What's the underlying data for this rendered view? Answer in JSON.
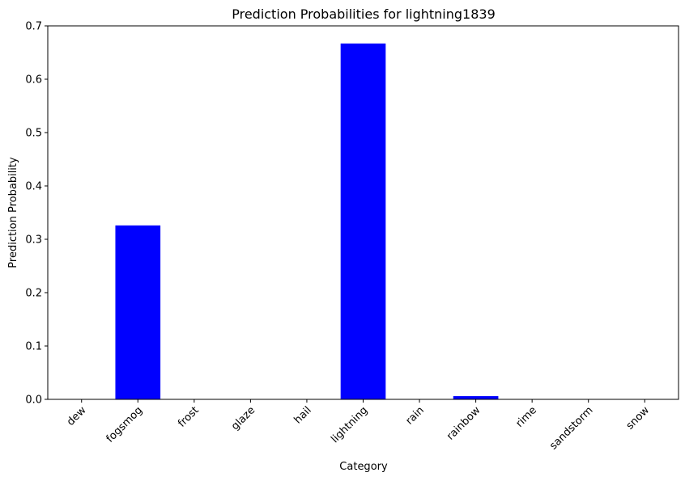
{
  "chart_data": {
    "type": "bar",
    "title": "Prediction Probabilities for lightning1839",
    "xlabel": "Category",
    "ylabel": "Prediction Probability",
    "categories": [
      "dew",
      "fogsmog",
      "frost",
      "glaze",
      "hail",
      "lightning",
      "rain",
      "rainbow",
      "rime",
      "sandstorm",
      "snow"
    ],
    "values": [
      0.0,
      0.326,
      0.0,
      0.0,
      0.0,
      0.667,
      0.0,
      0.006,
      0.0,
      0.0,
      0.0
    ],
    "ylim": [
      0,
      0.7
    ],
    "yticks": [
      "0.0",
      "0.1",
      "0.2",
      "0.3",
      "0.4",
      "0.5",
      "0.6",
      "0.7"
    ],
    "bar_color": "#0000ff",
    "grid": false,
    "legend": "none"
  }
}
